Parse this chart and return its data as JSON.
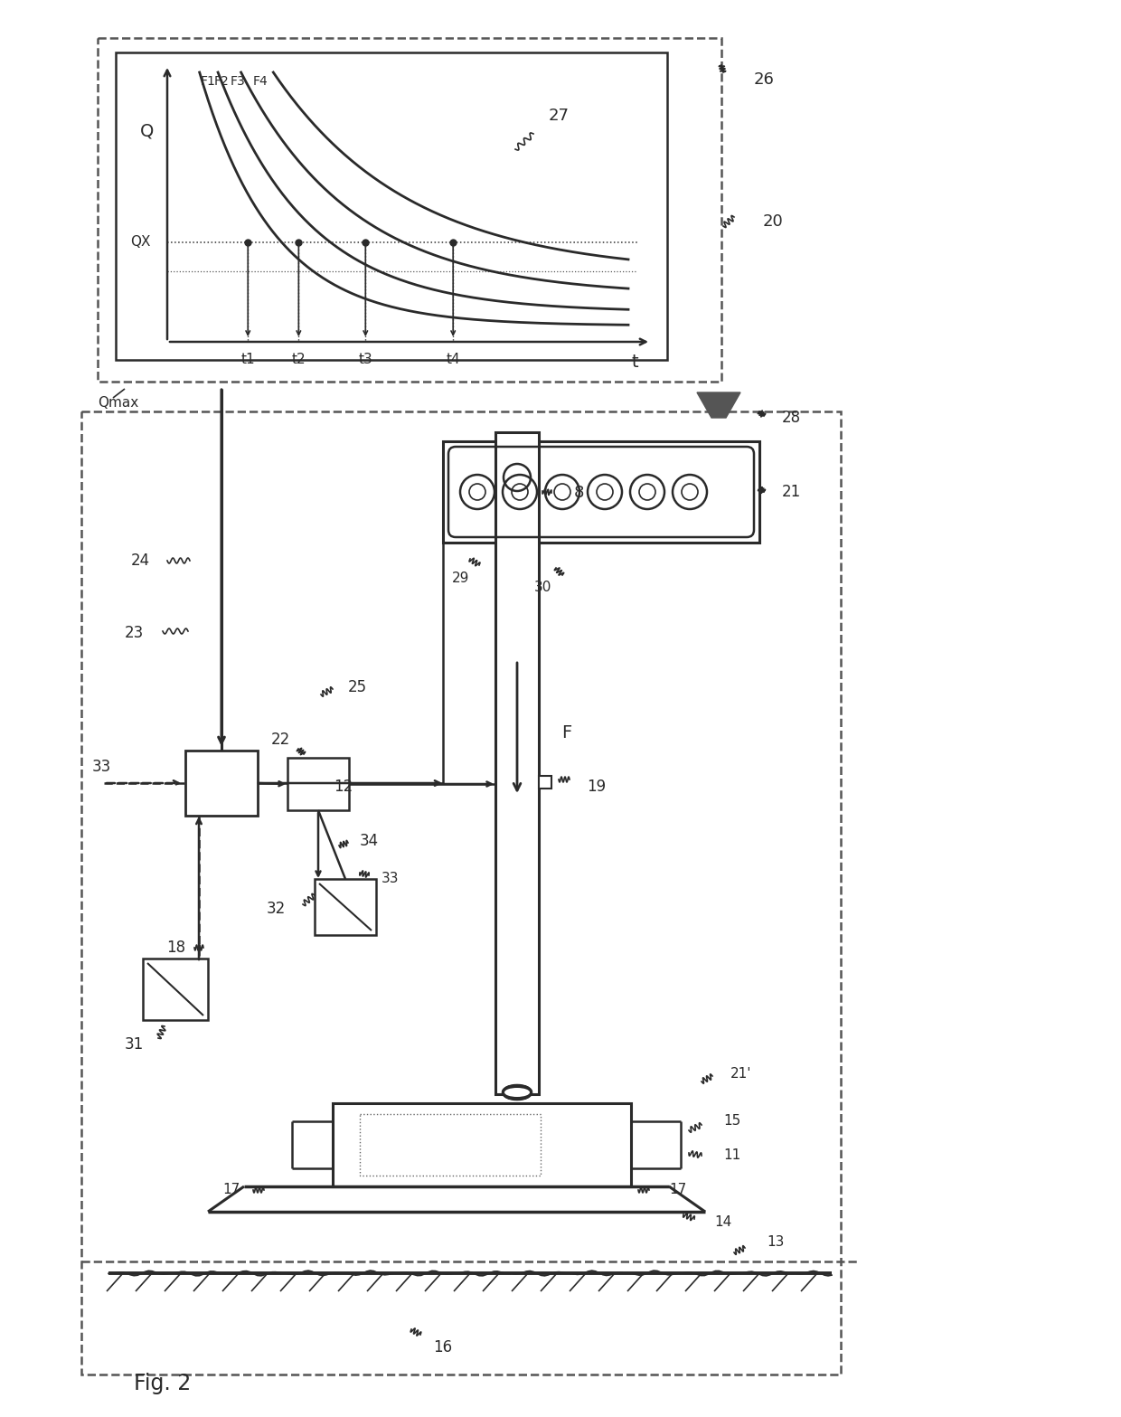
{
  "bg_color": "#ffffff",
  "lc": "#2a2a2a",
  "fig_w": 12.4,
  "fig_h": 15.67,
  "dpi": 100,
  "labels": {
    "Q": "Q",
    "QX": "QX",
    "Qmax": "Qmax",
    "t": "t",
    "t1": "t1",
    "t2": "t2",
    "t3": "t3",
    "t4": "t4",
    "F1": "F1",
    "F2": "F2",
    "F3": "F3",
    "F4": "F4",
    "r27": "27",
    "r26": "26",
    "r20": "20",
    "r28": "28",
    "r21": "21",
    "r29": "29",
    "r30": "30",
    "r25": "25",
    "r24": "24",
    "r23": "23",
    "r22": "22",
    "r8": "8",
    "r19": "19",
    "r34": "34",
    "r33a": "33",
    "r33b": "33",
    "r32": "32",
    "r12": "12",
    "r18": "18",
    "r31": "31",
    "r11": "11",
    "r15": "15",
    "r17a": "17",
    "r17b": "17",
    "r14": "14",
    "r13": "13",
    "r16": "16",
    "rF": "F",
    "r21p": "21'",
    "fig": "Fig. 2"
  }
}
